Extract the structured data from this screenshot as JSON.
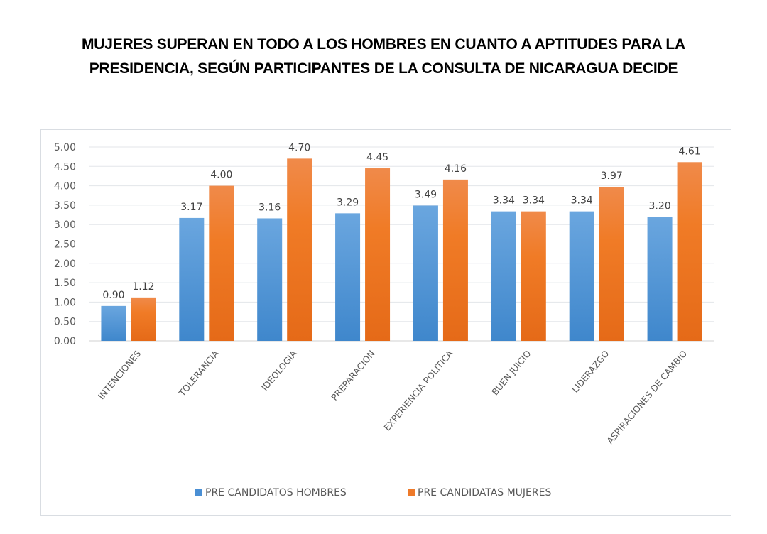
{
  "title_lines": [
    "MUJERES SUPERAN EN TODO A LOS HOMBRES EN CUANTO A APTITUDES PARA LA",
    "PRESIDENCIA, SEGÚN PARTICIPANTES DE LA CONSULTA DE NICARAGUA DECIDE"
  ],
  "chart_data": {
    "type": "bar",
    "title": "MUJERES SUPERAN EN TODO A LOS HOMBRES EN CUANTO A APTITUDES PARA LA PRESIDENCIA, SEGÚN PARTICIPANTES DE LA CONSULTA DE NICARAGUA DECIDE",
    "xlabel": "",
    "ylabel": "",
    "ylim": [
      0,
      5
    ],
    "yticks": [
      "0.00",
      "0.50",
      "1.00",
      "1.50",
      "2.00",
      "2.50",
      "3.00",
      "3.50",
      "4.00",
      "4.50",
      "5.00"
    ],
    "grid": true,
    "legend_position": "bottom",
    "categories": [
      "INTENCIONES",
      "TOLERANCIA",
      "IDEOLOGIA",
      "PREPARACION",
      "EXPERIENCIA POLITICA",
      "BUEN JUICIO",
      "LIDERAZGO",
      "ASPIRACIONES DE CAMBIO"
    ],
    "series": [
      {
        "name": "PRE CANDIDATOS HOMBRES",
        "color": "#4a8fd4",
        "values": [
          0.9,
          3.17,
          3.16,
          3.29,
          3.49,
          3.34,
          3.34,
          3.2
        ],
        "labels": [
          "0.90",
          "3.17",
          "3.16",
          "3.29",
          "3.49",
          "3.34",
          "3.34",
          "3.20"
        ]
      },
      {
        "name": "PRE CANDIDATAS MUJERES",
        "color": "#ee7a2a",
        "values": [
          1.12,
          4.0,
          4.7,
          4.45,
          4.16,
          3.34,
          3.97,
          4.61
        ],
        "labels": [
          "1.12",
          "4.00",
          "4.70",
          "4.45",
          "4.16",
          "3.34",
          "3.97",
          "4.61"
        ]
      }
    ]
  }
}
